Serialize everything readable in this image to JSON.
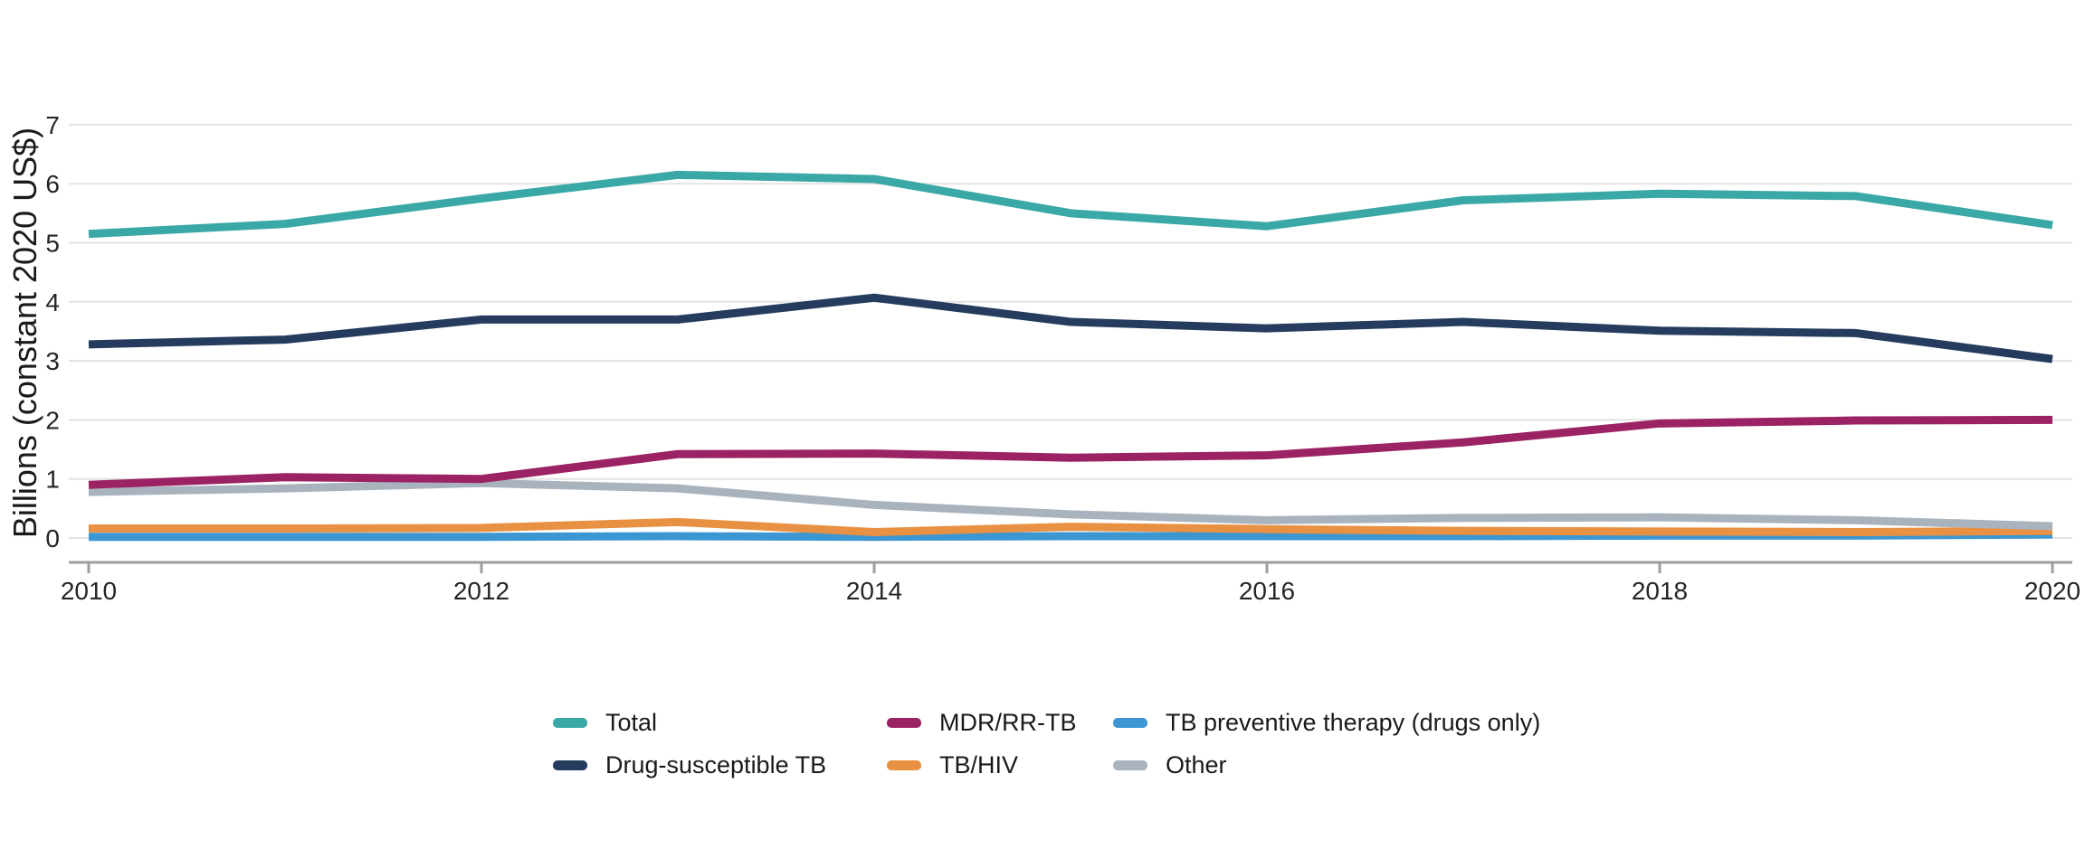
{
  "chart_data": {
    "type": "line",
    "title": "",
    "xlabel": "",
    "ylabel": "Billions (constant 2020 US$)",
    "x": [
      2010,
      2011,
      2012,
      2013,
      2014,
      2015,
      2016,
      2017,
      2018,
      2019,
      2020
    ],
    "x_tick_years": [
      2010,
      2012,
      2014,
      2016,
      2018,
      2020
    ],
    "x_tick_labels": [
      "2010",
      "2012",
      "2014",
      "2016",
      "2018",
      "2020"
    ],
    "y_ticks": [
      0,
      1,
      2,
      3,
      4,
      5,
      6,
      7
    ],
    "ylim": [
      0,
      7
    ],
    "xlim": [
      2010,
      2020
    ],
    "grid": "horizontal-only",
    "legend_position": "bottom",
    "series": [
      {
        "name": "Total",
        "color": "#3aa8a6",
        "values": [
          5.15,
          5.32,
          5.75,
          6.15,
          6.08,
          5.5,
          5.28,
          5.72,
          5.83,
          5.79,
          5.3
        ]
      },
      {
        "name": "Drug-susceptible TB",
        "color": "#253c5e",
        "values": [
          3.28,
          3.36,
          3.7,
          3.7,
          4.07,
          3.66,
          3.55,
          3.66,
          3.51,
          3.47,
          3.03
        ]
      },
      {
        "name": "MDR/RR-TB",
        "color": "#9b2363",
        "values": [
          0.9,
          1.03,
          1.0,
          1.42,
          1.43,
          1.36,
          1.4,
          1.62,
          1.94,
          1.99,
          2.0
        ]
      },
      {
        "name": "TB/HIV",
        "color": "#e99142",
        "values": [
          0.16,
          0.16,
          0.17,
          0.27,
          0.1,
          0.19,
          0.15,
          0.12,
          0.11,
          0.1,
          0.12
        ]
      },
      {
        "name": "TB preventive therapy (drugs only)",
        "color": "#3c96d2",
        "values": [
          0.02,
          0.02,
          0.02,
          0.03,
          0.02,
          0.03,
          0.03,
          0.03,
          0.04,
          0.04,
          0.06
        ]
      },
      {
        "name": "Other",
        "color": "#a9b3be",
        "values": [
          0.78,
          0.84,
          0.93,
          0.84,
          0.56,
          0.4,
          0.3,
          0.34,
          0.35,
          0.3,
          0.2
        ]
      }
    ]
  },
  "legend": {
    "columns": [
      [
        0,
        1
      ],
      [
        2,
        3
      ],
      [
        4,
        5
      ]
    ]
  },
  "colors": {
    "background": "#ffffff",
    "gridline": "#e3e3e3",
    "axis_line": "#9e9e9e",
    "tick_text": "#262626"
  }
}
